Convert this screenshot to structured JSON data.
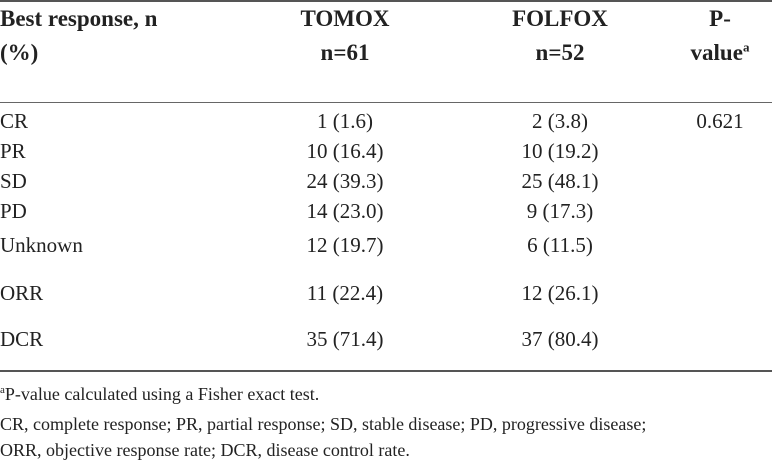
{
  "table": {
    "headers": {
      "col1_line1": "Best response, n",
      "col1_line2": "(%)",
      "col2_line1": "TOMOX",
      "col2_line2": "n=61",
      "col3_line1": "FOLFOX",
      "col3_line2": "n=52",
      "col4_line1": "P-",
      "col4_line2": "value",
      "col4_sup": "a"
    },
    "rows": [
      {
        "label": "CR",
        "tomox": "1 (1.6)",
        "folfox": "2 (3.8)",
        "p": "0.621"
      },
      {
        "label": "PR",
        "tomox": "10 (16.4)",
        "folfox": "10 (19.2)",
        "p": ""
      },
      {
        "label": "SD",
        "tomox": "24 (39.3)",
        "folfox": "25 (48.1)",
        "p": ""
      },
      {
        "label": "PD",
        "tomox": "14 (23.0)",
        "folfox": "9 (17.3)",
        "p": ""
      },
      {
        "label": "Unknown",
        "tomox": "12 (19.7)",
        "folfox": "6 (11.5)",
        "p": ""
      },
      {
        "label": "ORR",
        "tomox": "11 (22.4)",
        "folfox": "12 (26.1)",
        "p": ""
      },
      {
        "label": "DCR",
        "tomox": "35 (71.4)",
        "folfox": "37 (80.4)",
        "p": ""
      }
    ]
  },
  "footnotes": {
    "a_sup": "a",
    "a_text": "P-value calculated using a Fisher exact test.",
    "abbrev_line1": "CR, complete response; PR, partial response; SD, stable disease; PD, progressive disease;",
    "abbrev_line2": "ORR, objective response rate; DCR, disease control rate."
  }
}
